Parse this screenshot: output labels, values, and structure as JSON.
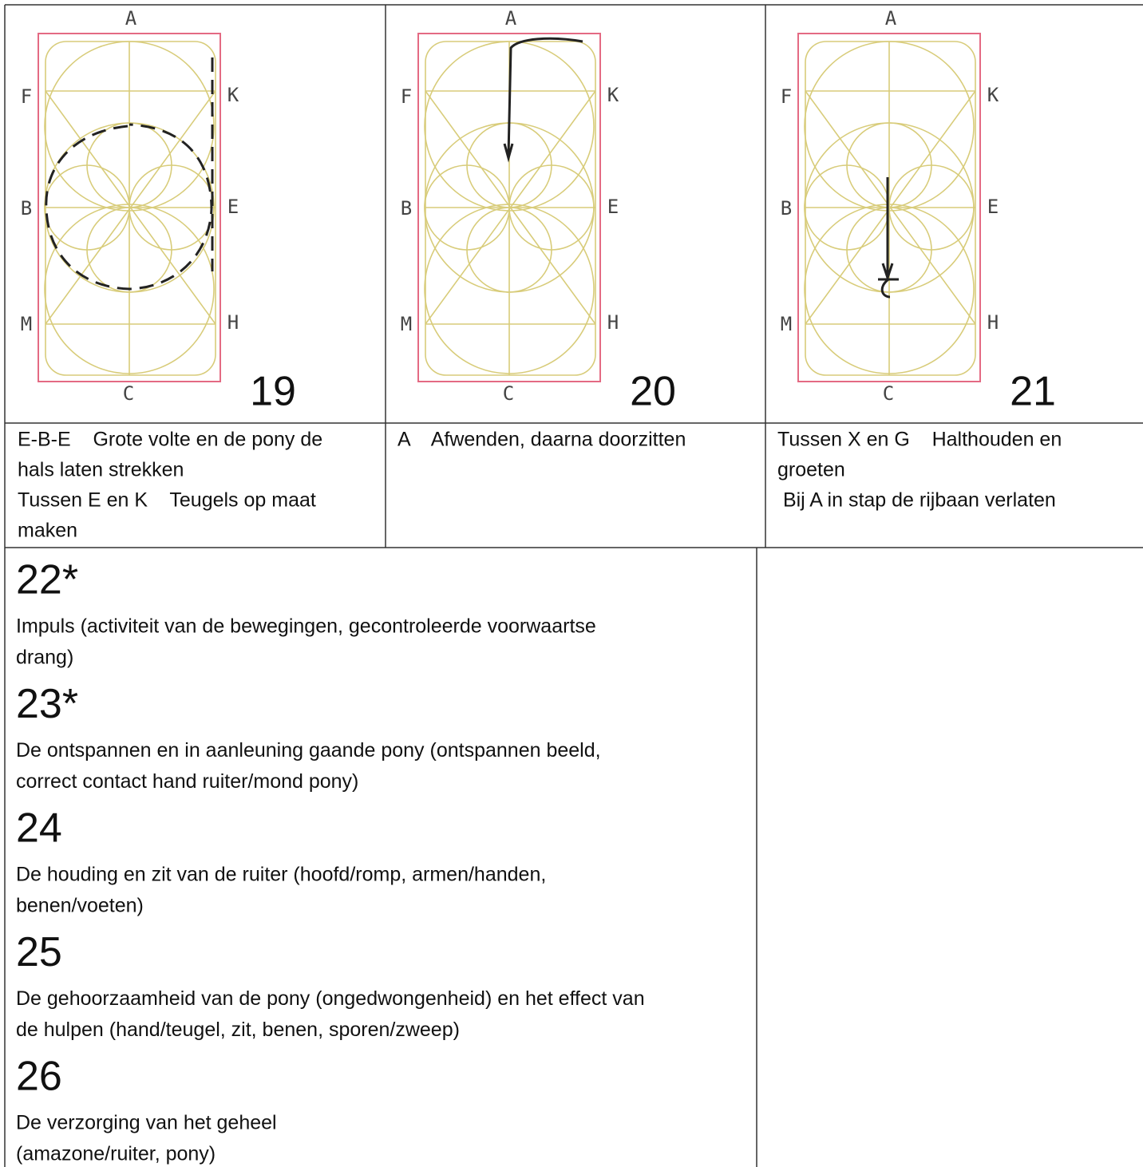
{
  "arena": {
    "top": "A",
    "left": [
      "F",
      "B",
      "M"
    ],
    "right": [
      "K",
      "E",
      "H"
    ],
    "bottom": "C"
  },
  "movements": [
    {
      "number": "19",
      "lines": [
        "E-B-E    Grote volte en de pony de",
        "hals laten strekken",
        "Tussen E en K    Teugels op maat",
        "maken"
      ]
    },
    {
      "number": "20",
      "lines": [
        "A    Afwenden, daarna doorzitten"
      ]
    },
    {
      "number": "21",
      "lines": [
        "Tussen X en G    Halthouden en",
        "groeten",
        " Bij A in stap de rijbaan verlaten"
      ]
    }
  ],
  "general_marks": [
    {
      "number": "22*",
      "lines": [
        "Impuls (activiteit van de bewegingen, gecontroleerde voorwaartse",
        "drang)"
      ]
    },
    {
      "number": "23*",
      "lines": [
        "De ontspannen en in aanleuning gaande pony (ontspannen beeld,",
        "correct contact hand ruiter/mond pony)"
      ]
    },
    {
      "number": "24",
      "lines": [
        "De houding en zit van de ruiter (hoofd/romp, armen/handen,",
        "benen/voeten)"
      ]
    },
    {
      "number": "25",
      "lines": [
        "De gehoorzaamheid van de pony (ongedwongenheid) en het effect van",
        "de hulpen (hand/teugel, zit, benen, sporen/zweep)"
      ]
    },
    {
      "number": "26",
      "lines": [
        "De verzorging van het geheel",
        "(amazone/ruiter, pony)"
      ]
    }
  ]
}
